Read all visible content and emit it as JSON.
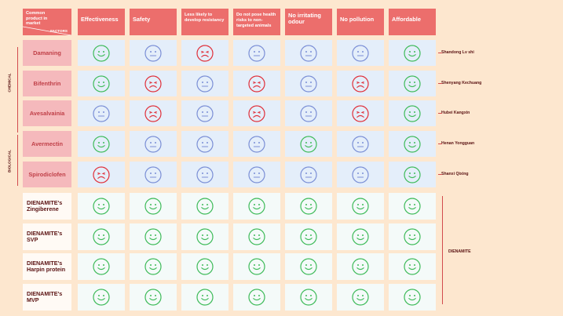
{
  "header": {
    "corner_top": "Common product in market",
    "corner_bottom": "FACTORS",
    "factors": [
      "Effectiveness",
      "Safety",
      "Less likely to develop resistancy",
      "Do not pose health risks to non-targeted animals",
      "No irritating odour",
      "No pollution",
      "Affordable"
    ]
  },
  "groups": {
    "chemical": "CHEMICAL",
    "biological": "BIOLOGICAL",
    "dienamite": "DIENAMITE"
  },
  "products": [
    {
      "name": "Damaning",
      "maker": "Shandong Lv shi",
      "ratings": [
        "happy",
        "neutral",
        "sad",
        "neutral",
        "neutral",
        "neutral",
        "happy"
      ]
    },
    {
      "name": "Bifenthrin",
      "maker": "Shenyang Kechuang",
      "ratings": [
        "happy",
        "sad",
        "neutral",
        "sad",
        "neutral",
        "sad",
        "happy"
      ]
    },
    {
      "name": "Avesalvainia",
      "maker": "Hubei Kangxin",
      "ratings": [
        "neutral",
        "sad",
        "neutral",
        "sad",
        "neutral",
        "sad",
        "happy"
      ]
    },
    {
      "name": "Avermectin",
      "maker": "Henan Yongguan",
      "ratings": [
        "happy",
        "neutral",
        "neutral",
        "neutral",
        "happy",
        "neutral",
        "happy"
      ]
    },
    {
      "name": "Spirodiclofen",
      "maker": "Shanxi Qixing",
      "ratings": [
        "sad",
        "neutral",
        "neutral",
        "neutral",
        "neutral",
        "neutral",
        "happy"
      ]
    },
    {
      "name": "DIENAMITE's Zingiberene",
      "maker": "",
      "ratings": [
        "happy",
        "happy",
        "happy",
        "happy",
        "happy",
        "happy",
        "happy"
      ]
    },
    {
      "name": "DIENAMITE's SVP",
      "maker": "",
      "ratings": [
        "happy",
        "happy",
        "happy",
        "happy",
        "happy",
        "happy",
        "happy"
      ]
    },
    {
      "name": "DIENAMITE's Harpin protein",
      "maker": "",
      "ratings": [
        "happy",
        "happy",
        "happy",
        "happy",
        "happy",
        "happy",
        "happy"
      ]
    },
    {
      "name": "DIENAMITE's MVP",
      "maker": "",
      "ratings": [
        "happy",
        "happy",
        "happy",
        "happy",
        "happy",
        "happy",
        "happy"
      ]
    }
  ],
  "colors": {
    "happy": "#3fbb5a",
    "neutral": "#7b8fd6",
    "sad": "#e0303a"
  }
}
